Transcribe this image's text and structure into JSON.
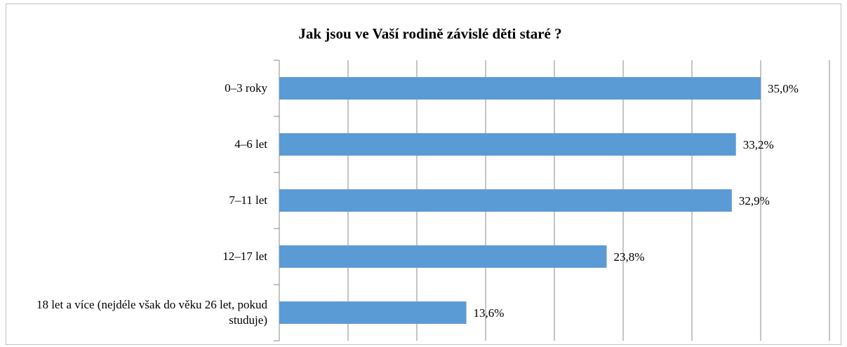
{
  "chart_data": {
    "type": "hbar",
    "title": "Jak jsou ve Vaší rodině závislé děti staré ?",
    "categories": [
      "0–3 roky",
      "4–6 let",
      "7–11 let",
      "12–17 let",
      "18 let a více (nejdéle však do věku 26 let, pokud studuje)"
    ],
    "values": [
      35.0,
      33.2,
      32.9,
      23.8,
      13.6
    ],
    "value_labels": [
      "35,0%",
      "33,2%",
      "32,9%",
      "23,8%",
      "13,6%"
    ],
    "color": "#5b9bd5",
    "xlim": [
      0,
      40
    ],
    "xticks": [
      0,
      5,
      10,
      15,
      20,
      25,
      30,
      35,
      40
    ],
    "grid": true
  }
}
